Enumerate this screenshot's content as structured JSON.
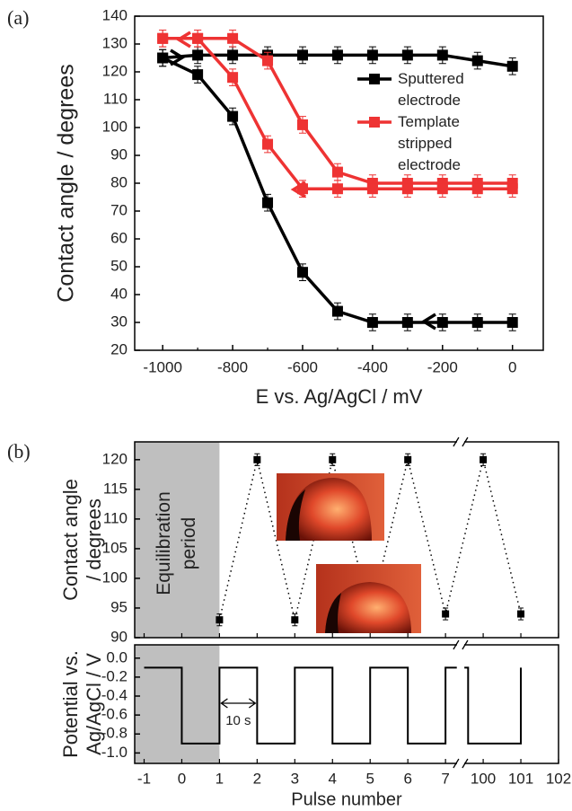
{
  "panel_labels": [
    "(a)",
    "(b)"
  ],
  "chart_data": [
    {
      "type": "line",
      "xlabel": "E vs. Ag/AgCl / mV",
      "ylabel": "Contact angle / degrees",
      "x": [
        -1000,
        -900,
        -800,
        -700,
        -600,
        -500,
        -400,
        -300,
        -200,
        -100,
        0
      ],
      "series": [
        {
          "name": "Sputtered electrode",
          "color": "#000000",
          "values": [
            125,
            126,
            126,
            126,
            126,
            126,
            126,
            126,
            126,
            124,
            122
          ]
        },
        {
          "color": "#000000",
          "values": [
            125,
            119,
            104,
            73,
            48,
            34,
            30,
            30,
            30,
            30,
            30
          ]
        },
        {
          "name": "Template stripped electrode",
          "color": "#ee3333",
          "values": [
            132,
            132,
            132,
            124,
            101,
            84,
            80,
            80,
            80,
            80,
            80
          ]
        },
        {
          "color": "#ee3333",
          "values": [
            132,
            132,
            118,
            94,
            78,
            78,
            78,
            78,
            78,
            78,
            78
          ]
        }
      ],
      "error": 3,
      "xlim": [
        -1080,
        88
      ],
      "ylim": [
        20,
        140
      ],
      "xticks": [
        -1000,
        -800,
        -600,
        -400,
        -200,
        0
      ],
      "xminorticks": [
        -900,
        -700,
        -500,
        -300,
        -100
      ],
      "yticks": [
        20,
        30,
        40,
        50,
        60,
        70,
        80,
        90,
        100,
        110,
        120,
        130,
        140
      ],
      "legend": "upper right"
    },
    {
      "type": "scatter",
      "ylabel": [
        "Contact angle",
        "/ degrees"
      ],
      "x": [
        1,
        2,
        3,
        4,
        5,
        6,
        7,
        100,
        101
      ],
      "values": [
        93,
        120,
        93,
        120,
        94,
        120,
        94,
        120,
        94
      ],
      "error": 1,
      "color": "#000000",
      "line_style": "dotted",
      "xlim": [
        -1.25,
        102
      ],
      "xbreak": [
        7.4,
        99.4
      ],
      "ylim": [
        90,
        123
      ],
      "yticks": [
        90,
        95,
        100,
        105,
        110,
        115,
        120
      ],
      "shade": {
        "x": [
          -1.25,
          1
        ],
        "label": "Equilibration period"
      }
    },
    {
      "type": "step",
      "xlabel": "Pulse number",
      "ylabel": [
        "Potential vs.",
        "Ag/AgCl / V"
      ],
      "x": [
        -1,
        0,
        0,
        1,
        1,
        2,
        2,
        3,
        3,
        4,
        4,
        5,
        5,
        6,
        6,
        7,
        7,
        7.3,
        null,
        99.5,
        99.6,
        99.6,
        101,
        101
      ],
      "values": [
        -0.1,
        -0.1,
        -0.9,
        -0.9,
        -0.1,
        -0.1,
        -0.9,
        -0.9,
        -0.1,
        -0.1,
        -0.9,
        -0.9,
        -0.1,
        -0.1,
        -0.9,
        -0.9,
        -0.1,
        -0.1,
        null,
        -0.1,
        -0.1,
        -0.9,
        -0.9,
        -0.1
      ],
      "color": "#000000",
      "xlim": [
        -1.25,
        102
      ],
      "xbreak": [
        7.4,
        99.4
      ],
      "ylim": [
        -1.11,
        0.14
      ],
      "xticks": [
        -1,
        0,
        1,
        2,
        3,
        4,
        5,
        6,
        7,
        100,
        101,
        102
      ],
      "yticks": [
        {
          "value": 0,
          "label": "0.0"
        },
        -0.2,
        -0.4,
        -0.6,
        -0.8,
        {
          "value": -1,
          "label": "-1.0"
        }
      ],
      "annotation": {
        "text": "10 s",
        "x": [
          1,
          2
        ]
      }
    }
  ]
}
